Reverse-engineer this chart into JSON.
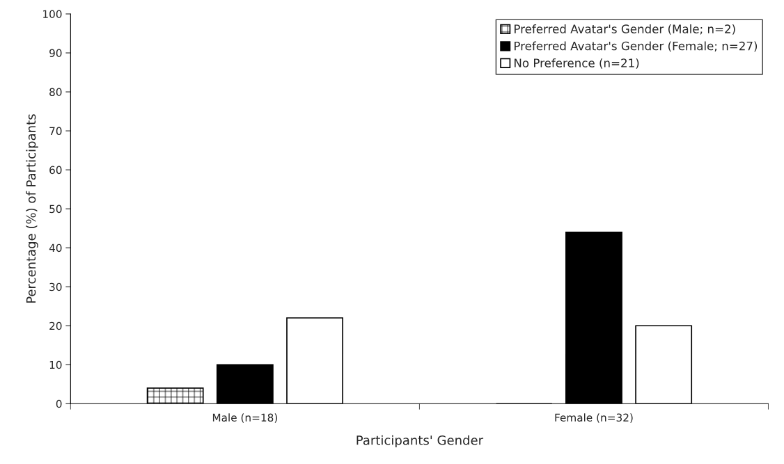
{
  "chart_data": {
    "type": "bar",
    "xlabel": "Participants' Gender",
    "ylabel": "Percentage (%) of Participants",
    "categories": [
      "Male (n=18)",
      "Female (n=32)"
    ],
    "series": [
      {
        "name": "Preferred Avatar's Gender (Male; n=2)",
        "color": "#000000",
        "values": [
          4,
          0
        ]
      },
      {
        "name": "Preferred Avatar's Gender (Female; n=27)",
        "color": "#000000",
        "values": [
          10,
          44
        ]
      },
      {
        "name": "No Preference (n=21)",
        "color": "#ffffff",
        "values": [
          22,
          20
        ]
      }
    ],
    "ylim": [
      0,
      100
    ],
    "yticks": [
      0,
      10,
      20,
      30,
      40,
      50,
      60,
      70,
      80,
      90,
      100
    ],
    "grid": false,
    "legend": "top right"
  }
}
